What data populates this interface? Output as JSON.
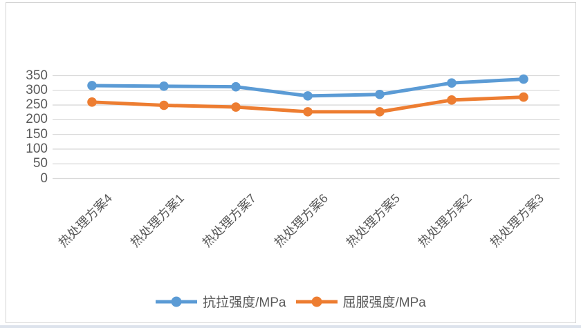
{
  "chart_data": {
    "type": "line",
    "categories": [
      "热处理方案4",
      "热处理方案1",
      "热处理方案7",
      "热处理方案6",
      "热处理方案5",
      "热处理方案2",
      "热处理方案3"
    ],
    "series": [
      {
        "name": "抗拉强度/MPa",
        "color": "#5B9BD5",
        "values": [
          316,
          314,
          312,
          281,
          286,
          325,
          338
        ]
      },
      {
        "name": "屈服强度/MPa",
        "color": "#ED7D31",
        "values": [
          260,
          249,
          243,
          227,
          227,
          267,
          277
        ]
      }
    ],
    "title": "",
    "xlabel": "",
    "ylabel": "",
    "ylim": [
      0,
      350
    ],
    "yticks": [
      0,
      50,
      100,
      150,
      200,
      250,
      300,
      350
    ],
    "grid": true,
    "legend_position": "bottom",
    "category_label_rotation": -45
  },
  "colors": {
    "gridline": "#d9d9d9",
    "axis_text": "#595959",
    "chart_border": "#d2d2d2",
    "chart_background": "#ffffff",
    "page_bottom_edge": "#dde3ec"
  }
}
